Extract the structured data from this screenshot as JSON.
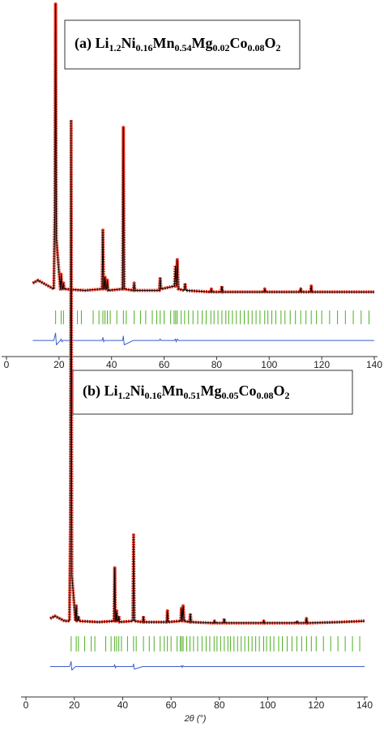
{
  "chart_data": [
    {
      "type": "line",
      "title": "(a) Li1.2Ni0.16Mn0.54Mg0.02Co0.08O2",
      "xlabel": "2θ (°)",
      "xlim": [
        0,
        140
      ],
      "xticks": [
        0,
        20,
        40,
        60,
        80,
        100,
        120,
        140
      ],
      "ylim": [
        -20,
        100
      ],
      "x": [
        10,
        12,
        14,
        16,
        18,
        18.4,
        18.7,
        19,
        20.5,
        20.8,
        21.1,
        21.4,
        21.7,
        22,
        30,
        36.4,
        36.7,
        37,
        37.2,
        37.5,
        37.8,
        38.1,
        38.4,
        38.7,
        44.2,
        44.5,
        44.8,
        48.3,
        48.6,
        48.9,
        58.2,
        58.5,
        58.8,
        64,
        64.3,
        64.6,
        65,
        65.4,
        67.7,
        68,
        68.3,
        77.7,
        78,
        78.3,
        81.7,
        82,
        82.3,
        98,
        98.3,
        98.6,
        111.7,
        112,
        112.3,
        115.7,
        116,
        116.3,
        130,
        140
      ],
      "series": [
        {
          "color": "#e0301e",
          "values": [
            5,
            6,
            5,
            4,
            3,
            30,
            100,
            20,
            3,
            8,
            3,
            3,
            5,
            3,
            2.5,
            3,
            23,
            3,
            3,
            7,
            3,
            3,
            6,
            2.5,
            3,
            58,
            3,
            2.5,
            5,
            2.5,
            2.5,
            7,
            3,
            4,
            11,
            4,
            13,
            3,
            2.5,
            5,
            2.5,
            2,
            3,
            2,
            2,
            4,
            2,
            2,
            3,
            2,
            2,
            3,
            2,
            2,
            4,
            2,
            2,
            2
          ]
        },
        {
          "color": "#3a5fcd",
          "values": [
            -14.5,
            -14.5,
            -14.5,
            -14.5,
            -14.5,
            -13,
            -12,
            -16,
            -14.5,
            -14,
            -15,
            -14.5,
            -14.5,
            -14.5,
            -14.5,
            -14.5,
            -13.5,
            -15,
            -14.5,
            -14.5,
            -14.5,
            -14.5,
            -14.5,
            -14.5,
            -14.5,
            -13,
            -16,
            -14.5,
            -14.5,
            -14.5,
            -14.5,
            -14,
            -14.5,
            -14.5,
            -14,
            -15,
            -14,
            -14.5,
            -14.5,
            -14.5,
            -14.5,
            -14.5,
            -14.5,
            -14.5,
            -14.5,
            -14.5,
            -14.5,
            -14.5,
            -14.5,
            -14.5,
            -14.5,
            -14.5,
            -14.5,
            -14.5,
            -14.5,
            -14.5,
            -14.5,
            -14.5
          ]
        }
      ],
      "fit_color": "#000000",
      "reflection_color": "#4caf20",
      "reflections": [
        18.7,
        20.8,
        21.7,
        24.3,
        27,
        28.5,
        33,
        35.2,
        36.7,
        37.5,
        38.4,
        39.5,
        42,
        44.5,
        45.6,
        48.6,
        51,
        53,
        55.5,
        57.2,
        58.5,
        60,
        62.5,
        63.8,
        64.4,
        65,
        66.5,
        67.8,
        69.3,
        71,
        72.8,
        74.5,
        76,
        77.8,
        79,
        80.5,
        82,
        83.5,
        84.6,
        86,
        87.5,
        89,
        90.5,
        92,
        93.5,
        95,
        96.5,
        98.3,
        99.5,
        101,
        102.5,
        104.5,
        106,
        108,
        110,
        112,
        114,
        116,
        118,
        120,
        123,
        126,
        129,
        132,
        135,
        138
      ]
    },
    {
      "type": "line",
      "title": "(b) Li1.2Ni0.16Mn0.51Mg0.05Co0.08O2",
      "xlabel": "2θ (°)",
      "xlim": [
        0,
        140
      ],
      "xticks": [
        0,
        20,
        40,
        60,
        80,
        100,
        120,
        140
      ],
      "ylim": [
        -14,
        100
      ],
      "x": [
        10,
        12,
        14,
        16,
        18,
        18.4,
        18.7,
        19,
        20.5,
        20.8,
        21.1,
        21.4,
        21.7,
        22,
        30,
        36.4,
        36.7,
        37,
        37.2,
        37.5,
        37.8,
        38.1,
        38.4,
        38.7,
        44.2,
        44.5,
        44.8,
        48.3,
        48.6,
        48.9,
        58.2,
        58.5,
        58.8,
        64,
        64.3,
        64.6,
        65,
        65.4,
        67.7,
        68,
        68.3,
        77.7,
        78,
        78.3,
        81.7,
        82,
        82.3,
        98,
        98.3,
        98.6,
        111.7,
        112,
        112.3,
        115.7,
        116,
        116.3,
        130,
        140
      ],
      "series": [
        {
          "color": "#e0301e",
          "values": [
            1.5,
            2,
            1.5,
            1,
            1,
            20,
            100,
            10,
            1,
            4,
            1,
            1,
            2,
            1,
            0.8,
            1,
            11.5,
            1,
            1,
            3,
            1,
            1,
            2,
            0.8,
            1,
            18,
            1,
            0.8,
            2,
            0.8,
            0.8,
            3,
            0.8,
            1,
            3.5,
            1,
            4,
            1,
            0.8,
            2.5,
            0.8,
            0.6,
            1,
            0.6,
            0.6,
            1.5,
            0.6,
            0.6,
            1,
            0.6,
            0.6,
            1,
            0.6,
            0.6,
            1.5,
            0.6,
            0.8,
            1
          ]
        },
        {
          "color": "#3a5fcd",
          "values": [
            -8,
            -8,
            -8,
            -8,
            -8,
            -7.5,
            -7,
            -8.7,
            -8,
            -8,
            -8,
            -8,
            -8,
            -8,
            -8,
            -8,
            -7.6,
            -8.3,
            -8,
            -8,
            -8,
            -8,
            -8,
            -8,
            -8,
            -7.5,
            -8.5,
            -8,
            -8,
            -8,
            -8,
            -8,
            -8,
            -8,
            -7.8,
            -8.2,
            -7.8,
            -8,
            -8,
            -8,
            -8,
            -8,
            -8,
            -8,
            -8,
            -8,
            -8,
            -8,
            -8,
            -8,
            -8,
            -8,
            -8,
            -8,
            -8,
            -8,
            -8,
            -8
          ]
        }
      ],
      "fit_color": "#000000",
      "reflection_color": "#4caf20",
      "reflections": [
        18.7,
        20.8,
        21.7,
        24.3,
        27,
        28.5,
        33,
        35.2,
        36.7,
        37.5,
        38.4,
        39.5,
        42,
        44.5,
        45.6,
        48.6,
        51,
        53,
        55.5,
        57.2,
        58.5,
        60,
        62.5,
        63.8,
        64.4,
        65,
        66.5,
        67.8,
        69.3,
        71,
        72.8,
        74.5,
        76,
        77.8,
        79,
        80.5,
        82,
        83.5,
        84.6,
        86,
        87.5,
        89,
        90.5,
        92,
        93.5,
        95,
        96.5,
        98.3,
        99.5,
        101,
        102.5,
        104.5,
        106,
        108,
        110,
        112,
        114,
        116,
        118,
        120,
        123,
        126,
        129,
        132,
        135,
        138
      ]
    }
  ]
}
